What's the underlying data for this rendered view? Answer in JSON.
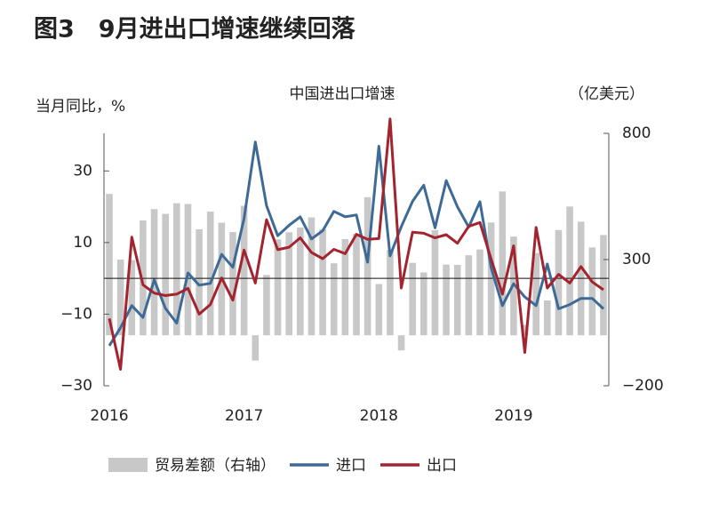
{
  "chart_data": {
    "type": "bar",
    "title": "图3　9月进出口增速继续回落",
    "subtitle": "中国进出口增速",
    "y_label": "当月同比，%",
    "y2_label": "（亿美元）",
    "categories": [
      "2016",
      null,
      null,
      null,
      null,
      null,
      null,
      null,
      null,
      null,
      null,
      null,
      "2017",
      null,
      null,
      null,
      null,
      null,
      null,
      null,
      null,
      null,
      null,
      null,
      "2018",
      null,
      null,
      null,
      null,
      null,
      null,
      null,
      null,
      null,
      null,
      null,
      "2019",
      null,
      null,
      null,
      null,
      null,
      null,
      null,
      null
    ],
    "series": [
      {
        "name": "贸易差额（右轴）",
        "type": "bar",
        "axis": "y2",
        "color": "#c8c8c8",
        "values": [
          560,
          300,
          298,
          455,
          500,
          481,
          523,
          520,
          420,
          490,
          446,
          409,
          513,
          -100,
          239,
          380,
          408,
          427,
          467,
          420,
          285,
          381,
          402,
          547,
          203,
          338,
          -60,
          287,
          249,
          416,
          280,
          279,
          317,
          340,
          447,
          570,
          391,
          41,
          326,
          138,
          417,
          510,
          450,
          348,
          397
        ]
      },
      {
        "name": "进口",
        "type": "line",
        "color": "#3d6a96",
        "values": [
          -18.8,
          -13.8,
          -7.6,
          -10.9,
          -0.4,
          -8.4,
          -12.5,
          1.5,
          -1.9,
          -1.4,
          6.7,
          3.1,
          16.7,
          38.1,
          20.3,
          11.9,
          14.8,
          17.2,
          11.0,
          13.3,
          18.7,
          17.2,
          17.7,
          4.5,
          36.9,
          6.3,
          14.4,
          21.5,
          26.0,
          14.1,
          27.3,
          20.0,
          14.3,
          21.4,
          3.0,
          -7.6,
          -1.5,
          -5.2,
          -7.6,
          4.0,
          -8.5,
          -7.3,
          -5.6,
          -5.6,
          -8.5
        ]
      },
      {
        "name": "出口",
        "type": "line",
        "color": "#a3232e",
        "values": [
          -11.2,
          -25.4,
          11.5,
          -1.8,
          -4.1,
          -4.8,
          -4.4,
          -2.8,
          -10.0,
          -7.3,
          0.1,
          -6.1,
          7.9,
          -1.3,
          16.4,
          8.0,
          8.7,
          11.3,
          7.2,
          5.5,
          8.1,
          6.9,
          12.3,
          10.9,
          11.1,
          44.5,
          -2.7,
          12.9,
          12.6,
          11.3,
          12.2,
          9.8,
          14.5,
          15.6,
          5.4,
          -4.4,
          9.1,
          -20.7,
          14.2,
          -2.7,
          1.1,
          -1.3,
          3.3,
          -1.0,
          -3.2
        ]
      }
    ],
    "ylim": [
      -30,
      40.5
    ],
    "yticks": [
      {
        "value": -30,
        "label": "−30"
      },
      {
        "value": -10,
        "label": "−10"
      },
      10,
      30
    ],
    "y2lim": [
      -200,
      800
    ],
    "y2ticks": [
      {
        "value": -200,
        "label": "−200"
      },
      300,
      800
    ],
    "grid": false
  }
}
